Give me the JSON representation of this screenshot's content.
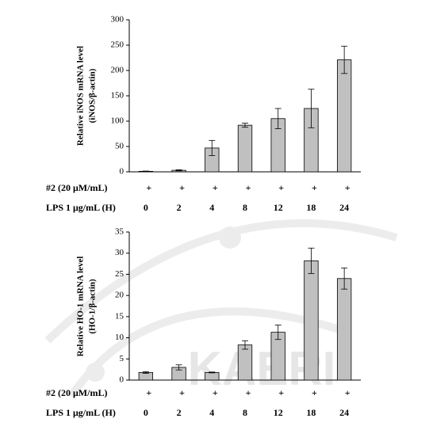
{
  "watermark": "KAERI",
  "chart_data": [
    {
      "type": "bar",
      "y_label": [
        "Relative iNOS mRNA level",
        "(iNOS/β-actin)"
      ],
      "categories": [
        "0",
        "2",
        "4",
        "8",
        "12",
        "18",
        "24"
      ],
      "x_label": "LPS 1 μg/mL (H)",
      "pretreatment": {
        "label": "#2 (20 μM/mL)",
        "marks": [
          "+",
          "+",
          "+",
          "+",
          "+",
          "+",
          "+"
        ]
      },
      "series": [
        {
          "color": "#c0c0c0",
          "values": [
            1,
            3,
            47,
            92,
            105,
            125,
            221
          ],
          "errors": [
            0.5,
            1,
            15,
            4,
            20,
            38,
            27
          ]
        }
      ],
      "ylim": [
        0,
        300
      ],
      "yticks": [
        0,
        50,
        100,
        150,
        200,
        250,
        300
      ]
    },
    {
      "type": "bar",
      "y_label": [
        "Relative HO-1 mRNA level",
        "(HO-1/β-actin)"
      ],
      "categories": [
        "0",
        "2",
        "4",
        "8",
        "12",
        "18",
        "24"
      ],
      "x_label": "LPS 1 μg/mL (H)",
      "pretreatment": {
        "label": "#2 (20 μM/mL)",
        "marks": [
          "+",
          "+",
          "+",
          "+",
          "+",
          "+",
          "+"
        ]
      },
      "series": [
        {
          "color": "#c0c0c0",
          "values": [
            1.8,
            3.0,
            1.8,
            8.3,
            11.3,
            28.2,
            24.0
          ],
          "errors": [
            0.2,
            0.6,
            0.1,
            1.0,
            1.7,
            3.0,
            2.5
          ]
        }
      ],
      "ylim": [
        0,
        35
      ],
      "yticks": [
        0,
        5,
        10,
        15,
        20,
        25,
        30,
        35
      ]
    }
  ]
}
